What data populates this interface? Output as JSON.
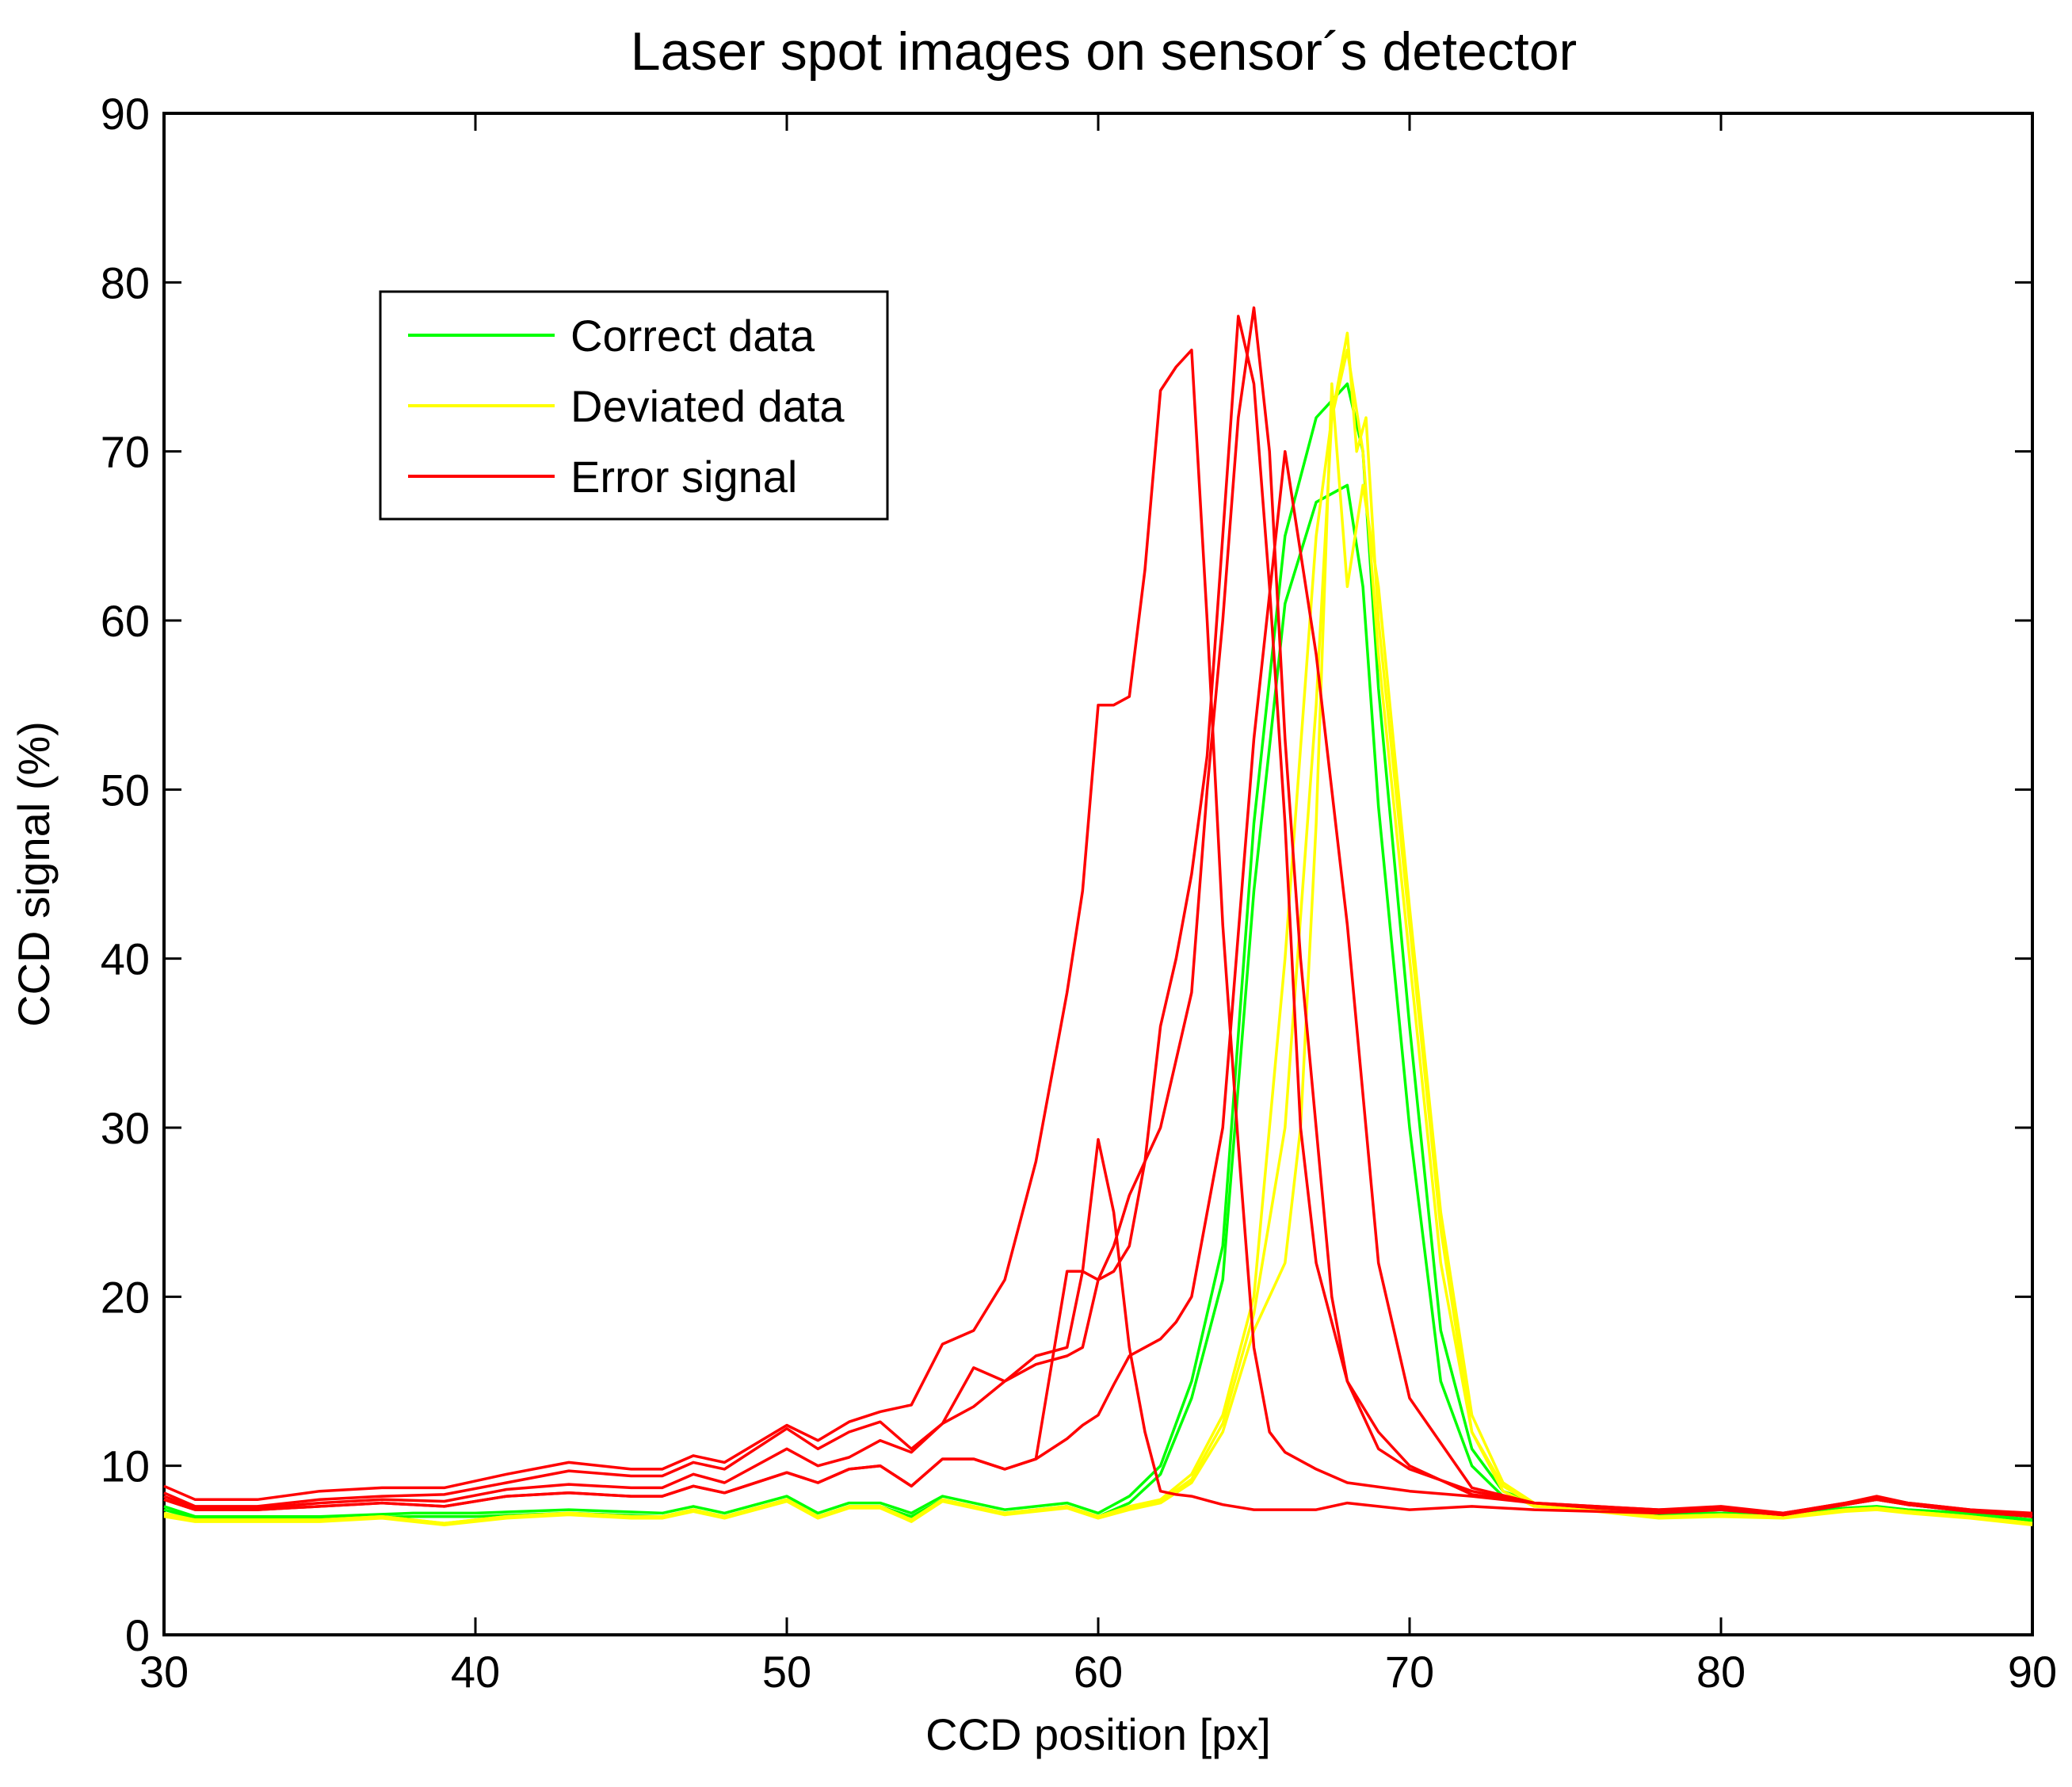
{
  "chart_data": {
    "type": "line",
    "title": "Laser spot images on sensor´s detector",
    "xlabel": "CCD position [px]",
    "ylabel": "CCD signal (%)",
    "xlim": [
      30,
      90
    ],
    "ylim": [
      0,
      90
    ],
    "xticks": [
      "30",
      "40",
      "50",
      "60",
      "70",
      "80",
      "90"
    ],
    "yticks": [
      "0",
      "10",
      "20",
      "30",
      "40",
      "50",
      "60",
      "70",
      "80",
      "90"
    ],
    "legend": {
      "placement": "upper-left",
      "entries": [
        {
          "label": "Correct data",
          "color": "#00ff00"
        },
        {
          "label": "Deviated data",
          "color": "#ffff00"
        },
        {
          "label": "Error signal",
          "color": "#ff0000"
        }
      ]
    },
    "series": [
      {
        "name": "Correct data",
        "color": "#00ff00",
        "x": [
          30,
          31,
          33,
          35,
          38,
          40,
          43,
          46,
          47,
          48,
          50,
          51,
          52,
          53,
          54,
          55,
          57,
          59,
          60,
          61,
          62,
          63,
          64,
          65,
          66,
          67,
          68,
          68.5,
          69,
          70,
          71,
          72,
          73,
          74,
          75,
          76,
          78,
          80,
          82,
          84,
          85,
          86,
          88,
          90
        ],
        "y": [
          7.6,
          7,
          7,
          7,
          7.2,
          7.2,
          7.4,
          7.2,
          7.6,
          7.2,
          8.2,
          7.2,
          7.8,
          7.8,
          7.2,
          8.2,
          7.4,
          7.8,
          7.2,
          8.2,
          10,
          15,
          23,
          48,
          65,
          72,
          74,
          70,
          56,
          36,
          18,
          11,
          8.5,
          7.8,
          7.6,
          7.5,
          7.2,
          7.2,
          7.2,
          7.5,
          7.6,
          7.4,
          7.2,
          6.8
        ]
      },
      {
        "name": "Correct data",
        "color": "#00ff00",
        "x": [
          30,
          31,
          33,
          35,
          38,
          40,
          43,
          46,
          47,
          48,
          50,
          51,
          52,
          53,
          54,
          55,
          57,
          59,
          60,
          61,
          62,
          63,
          64,
          65,
          66,
          67,
          68,
          68.5,
          69,
          70,
          71,
          72,
          73,
          74,
          75,
          76,
          78,
          80,
          82,
          84,
          85,
          86,
          88,
          90
        ],
        "y": [
          7.4,
          6.9,
          6.9,
          6.9,
          7,
          7,
          7.2,
          7,
          7.4,
          7,
          8,
          7,
          7.6,
          7.6,
          7,
          8,
          7.2,
          7.6,
          7,
          7.8,
          9.5,
          14,
          21,
          44,
          61,
          67,
          68,
          62,
          49,
          30,
          15,
          10,
          8.2,
          7.7,
          7.5,
          7.4,
          7.1,
          7.1,
          7.1,
          7.4,
          7.5,
          7.3,
          7.1,
          6.7
        ]
      },
      {
        "name": "Deviated data",
        "color": "#ffff00",
        "x": [
          30,
          31,
          33,
          35,
          37,
          39,
          41,
          43,
          45,
          46,
          47,
          48,
          50,
          51,
          52,
          53,
          54,
          55,
          57,
          59,
          60,
          61,
          62,
          63,
          64,
          65,
          66,
          67,
          67.5,
          68,
          68.5,
          69,
          70,
          71,
          72,
          73,
          74,
          76,
          78,
          80,
          82,
          84,
          85,
          86,
          88,
          90
        ],
        "y": [
          7.2,
          6.8,
          6.8,
          6.8,
          7,
          6.6,
          7,
          7.2,
          7,
          7,
          7.4,
          7,
          8,
          7,
          7.6,
          7.6,
          6.8,
          8,
          7.2,
          7.6,
          7,
          7.6,
          8,
          9.5,
          13,
          20,
          40,
          65,
          72,
          76,
          70,
          58,
          40,
          22,
          12,
          8.5,
          7.6,
          7.4,
          7,
          7.1,
          7,
          7.4,
          7.5,
          7.3,
          7,
          6.6
        ]
      },
      {
        "name": "Deviated data",
        "color": "#ffff00",
        "x": [
          30,
          31,
          33,
          35,
          37,
          39,
          41,
          43,
          45,
          46,
          47,
          48,
          50,
          51,
          52,
          53,
          54,
          55,
          57,
          59,
          60,
          61,
          62,
          63,
          64,
          65,
          66,
          66.5,
          67,
          67.5,
          68,
          68.5,
          69,
          70,
          71,
          72,
          73,
          74,
          76,
          78,
          80,
          82,
          84,
          85,
          86,
          88,
          90
        ],
        "y": [
          7,
          6.7,
          6.7,
          6.7,
          6.9,
          6.5,
          6.9,
          7.1,
          6.9,
          6.9,
          7.3,
          6.9,
          7.9,
          6.9,
          7.5,
          7.5,
          6.7,
          7.9,
          7.1,
          7.5,
          6.9,
          7.4,
          7.8,
          9,
          12,
          18,
          22,
          30,
          48,
          74,
          62,
          68,
          62,
          43,
          25,
          13,
          9,
          7.8,
          7.3,
          6.9,
          7,
          6.9,
          7.3,
          7.4,
          7.2,
          6.9,
          6.5
        ]
      },
      {
        "name": "Deviated data",
        "color": "#ffff00",
        "x": [
          30,
          31,
          33,
          35,
          37,
          39,
          41,
          43,
          45,
          46,
          47,
          48,
          50,
          51,
          52,
          53,
          54,
          55,
          57,
          59,
          60,
          61,
          62,
          63,
          64,
          65,
          66,
          67,
          67.5,
          68,
          68.3,
          68.6,
          69,
          70,
          71,
          72,
          73,
          74,
          76,
          78,
          80,
          82,
          84,
          85,
          86,
          88,
          90
        ],
        "y": [
          7.1,
          6.8,
          6.8,
          6.8,
          7,
          6.6,
          7,
          7.2,
          7,
          7,
          7.4,
          7,
          8,
          7,
          7.6,
          7.6,
          6.8,
          8,
          7.2,
          7.6,
          7,
          7.5,
          7.9,
          9.2,
          12.5,
          19,
          30,
          55,
          72,
          77,
          70,
          72,
          60,
          42,
          24,
          12,
          8.8,
          7.7,
          7.4,
          7,
          7.1,
          7,
          7.4,
          7.5,
          7.3,
          7,
          6.6
        ]
      },
      {
        "name": "Error signal",
        "color": "#ff0000",
        "x": [
          30,
          31,
          33,
          35,
          37,
          39,
          41,
          43,
          45,
          46,
          47,
          48,
          50,
          51,
          52,
          53,
          54,
          55,
          56,
          57,
          58,
          59,
          59.5,
          60,
          60.5,
          61,
          61.5,
          62,
          62.5,
          63,
          63.5,
          64,
          64.5,
          65,
          65.5,
          66,
          67,
          68,
          70,
          72,
          74,
          76,
          78,
          80,
          82,
          84,
          85,
          86,
          88,
          90
        ],
        "y": [
          8.8,
          8,
          8,
          8.5,
          8.7,
          8.7,
          9.5,
          10.2,
          9.8,
          9.8,
          10.6,
          10.2,
          12.4,
          11.5,
          12.6,
          13.2,
          13.6,
          17.2,
          18,
          21,
          28,
          38,
          44,
          55,
          55,
          55.5,
          63,
          73.6,
          75,
          76,
          60,
          42,
          29,
          17,
          12,
          10.8,
          9.8,
          9,
          8.5,
          8.2,
          7.8,
          7.6,
          7.4,
          7.6,
          7.2,
          7.8,
          8.2,
          7.8,
          7.4,
          7.2
        ]
      },
      {
        "name": "Error signal",
        "color": "#ff0000",
        "x": [
          30,
          31,
          33,
          35,
          37,
          39,
          41,
          43,
          45,
          46,
          47,
          48,
          50,
          51,
          52,
          53,
          54,
          55,
          56,
          57,
          58,
          59,
          59.5,
          60,
          60.5,
          61,
          62,
          62.5,
          63,
          63.5,
          64,
          64.5,
          65,
          65.5,
          66,
          66.5,
          67,
          67.5,
          68,
          69,
          70,
          72,
          74,
          76,
          78,
          80,
          82,
          84,
          85,
          86,
          88,
          90
        ],
        "y": [
          8.4,
          7.6,
          7.6,
          8,
          8.2,
          8.3,
          9,
          9.7,
          9.4,
          9.4,
          10.2,
          9.8,
          12.2,
          11,
          12,
          12.6,
          11,
          12.5,
          13.5,
          15,
          16.5,
          17,
          21.5,
          21,
          23,
          26,
          30,
          34,
          38,
          50,
          60,
          72,
          78.5,
          70,
          53,
          40,
          30,
          20,
          15,
          11,
          9.8,
          8.5,
          7.8,
          7.6,
          7.4,
          7.5,
          7.2,
          7.8,
          8.1,
          7.8,
          7.4,
          7.1
        ]
      },
      {
        "name": "Error signal",
        "color": "#ff0000",
        "x": [
          30,
          31,
          33,
          35,
          37,
          39,
          41,
          43,
          45,
          46,
          47,
          48,
          50,
          51,
          52,
          53,
          54,
          55,
          56,
          57,
          58,
          59,
          59.5,
          60,
          60.5,
          61,
          61.5,
          62,
          62.5,
          63,
          63.5,
          64,
          64.5,
          65,
          65.5,
          66,
          66.5,
          67,
          68,
          69,
          70,
          72,
          74,
          76,
          78,
          80,
          82,
          84,
          85,
          86,
          88,
          90
        ],
        "y": [
          8.2,
          7.5,
          7.5,
          7.8,
          8,
          7.9,
          8.6,
          8.9,
          8.7,
          8.7,
          9.5,
          9,
          11,
          10,
          10.5,
          11.5,
          10.8,
          12.5,
          15.8,
          15,
          16,
          16.5,
          17,
          21,
          21.5,
          23,
          28,
          36,
          40,
          45,
          52,
          65,
          78,
          74,
          62,
          48,
          30,
          22,
          15,
          12,
          10,
          8.3,
          7.8,
          7.5,
          7.3,
          7.4,
          7.1,
          7.7,
          8,
          7.7,
          7.3,
          7
        ]
      },
      {
        "name": "Error signal",
        "color": "#ff0000",
        "x": [
          30,
          31,
          33,
          35,
          37,
          39,
          41,
          43,
          45,
          46,
          47,
          48,
          50,
          51,
          52,
          53,
          54,
          55,
          56,
          57,
          58,
          59,
          59.5,
          60,
          60.5,
          61,
          61.5,
          62,
          62.5,
          63,
          64,
          65,
          66,
          67,
          68,
          69,
          70,
          72,
          74,
          76,
          78,
          80,
          82,
          84,
          85,
          86,
          88,
          90
        ],
        "y": [
          8,
          7.4,
          7.4,
          7.6,
          7.8,
          7.6,
          8.2,
          8.4,
          8.2,
          8.2,
          8.8,
          8.4,
          9.6,
          9,
          9.8,
          10,
          8.8,
          10.4,
          10.4,
          9.8,
          10.4,
          11.6,
          12.4,
          13,
          14.8,
          16.5,
          17,
          17.5,
          18.5,
          20,
          30,
          53,
          70,
          58,
          42,
          22,
          14,
          8.7,
          7.8,
          7.5,
          7.3,
          7.4,
          7.1,
          7.7,
          8,
          7.7,
          7.3,
          7
        ]
      },
      {
        "name": "Error signal",
        "color": "#ff0000",
        "x": [
          30,
          31,
          33,
          35,
          37,
          39,
          41,
          43,
          45,
          46,
          47,
          48,
          50,
          51,
          52,
          53,
          54,
          55,
          56,
          57,
          58,
          59,
          59.5,
          60,
          60.5,
          61,
          61.5,
          62,
          62.5,
          63,
          64,
          65,
          66,
          67,
          68,
          70,
          72,
          74,
          76,
          78,
          80,
          82,
          84,
          85,
          86,
          88,
          90
        ],
        "y": [
          8,
          7.4,
          7.4,
          7.6,
          7.8,
          7.6,
          8.2,
          8.4,
          8.2,
          8.2,
          8.8,
          8.4,
          9.6,
          9,
          9.8,
          10,
          8.8,
          10.4,
          10.4,
          9.8,
          10.4,
          21.5,
          21.5,
          29.3,
          25,
          17,
          12,
          8.5,
          8.3,
          8.2,
          7.7,
          7.4,
          7.4,
          7.4,
          7.8,
          7.4,
          7.6,
          7.4,
          7.3,
          7.2,
          7.4,
          7.1,
          7.7,
          8,
          7.7,
          7.3,
          7
        ]
      }
    ]
  }
}
